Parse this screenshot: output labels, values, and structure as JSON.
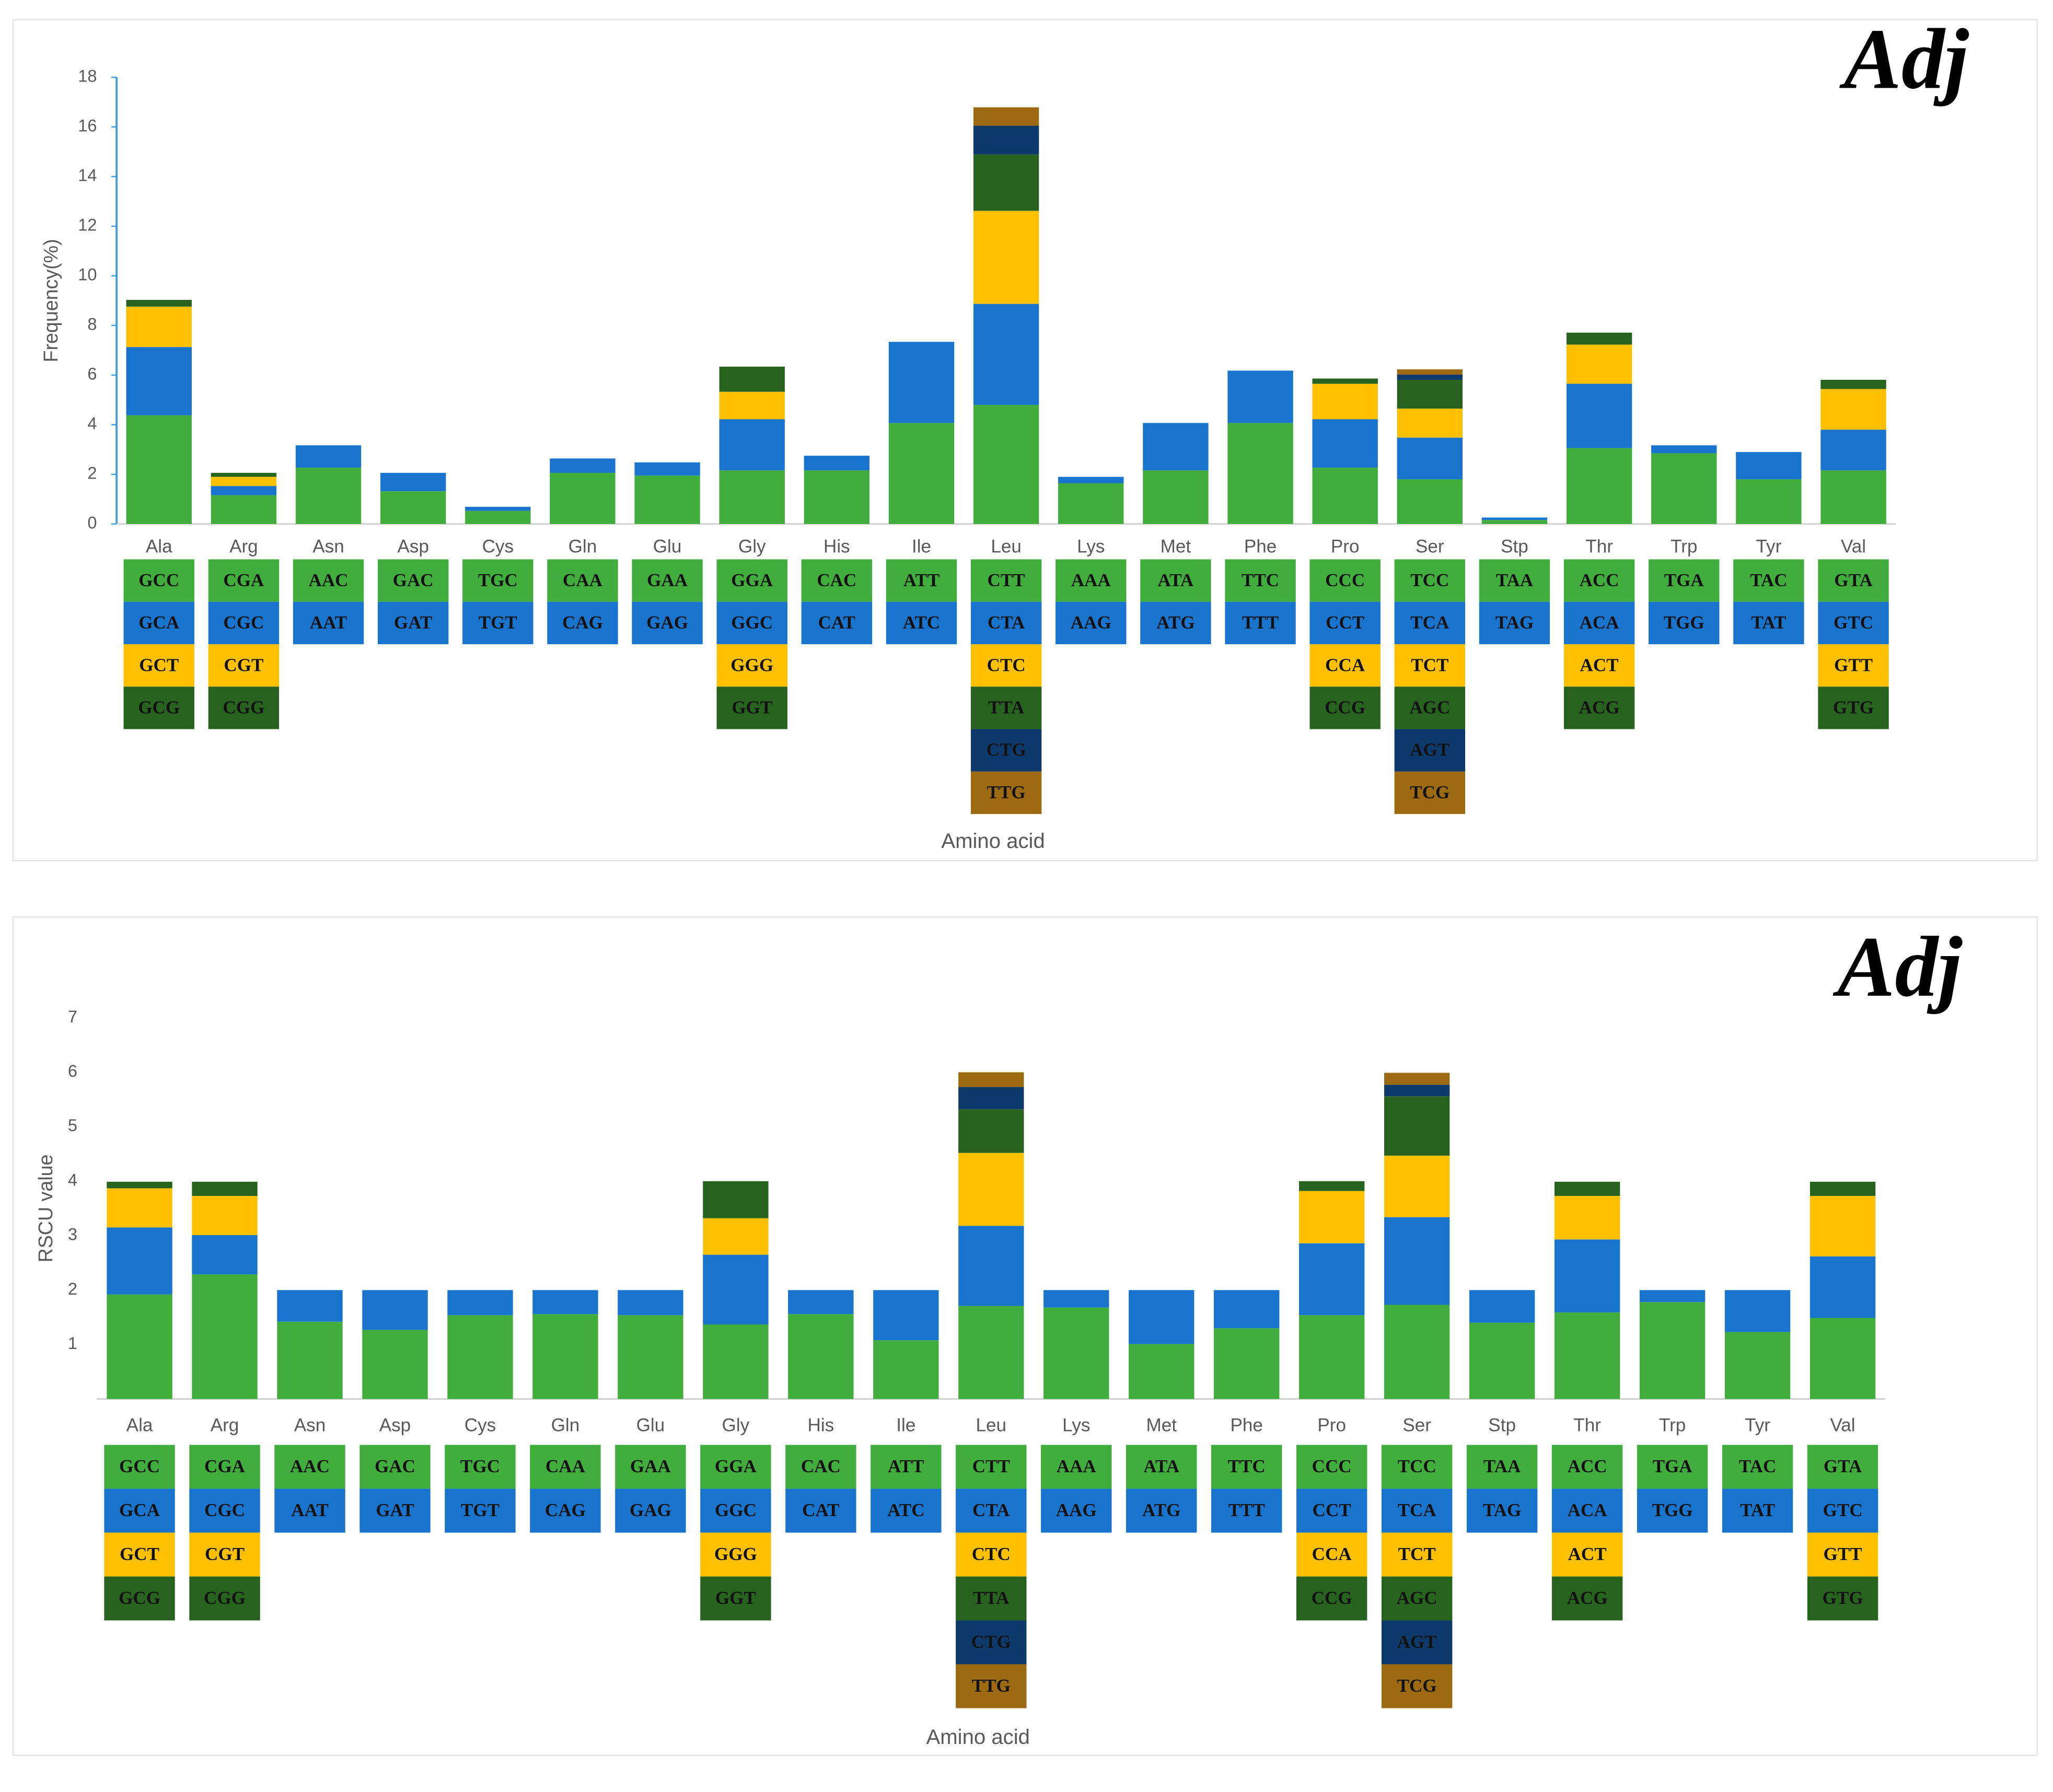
{
  "chart_data": [
    {
      "type": "bar",
      "stacked": true,
      "title": "Adj",
      "ylabel": "Frequency(%)",
      "xlabel": "Amino acid",
      "categories": [
        "Ala",
        "Arg",
        "Asn",
        "Asp",
        "Cys",
        "Gln",
        "Glu",
        "Gly",
        "His",
        "Ile",
        "Leu",
        "Lys",
        "Met",
        "Phe",
        "Pro",
        "Ser",
        "Stp",
        "Thr",
        "Trp",
        "Tyr",
        "Val"
      ],
      "ylim": [
        0,
        18
      ],
      "yticks": [
        0,
        2,
        4,
        6,
        8,
        10,
        12,
        14,
        16,
        18
      ],
      "series": [
        {
          "color": "#41ad3c",
          "values": [
            4.38,
            1.16,
            2.27,
            1.32,
            0.53,
            2.06,
            1.95,
            2.16,
            2.16,
            4.07,
            4.8,
            1.64,
            2.16,
            4.07,
            2.27,
            1.8,
            0.16,
            3.06,
            2.85,
            1.8,
            2.16
          ]
        },
        {
          "color": "#1874cd",
          "values": [
            2.75,
            0.37,
            0.9,
            0.74,
            0.16,
            0.58,
            0.53,
            2.06,
            0.59,
            3.27,
            4.07,
            0.26,
            1.91,
            2.11,
            1.95,
            1.68,
            0.1,
            2.59,
            0.32,
            1.1,
            1.64
          ]
        },
        {
          "color": "#ffc000",
          "values": [
            1.63,
            0.37,
            null,
            null,
            null,
            null,
            null,
            1.11,
            null,
            null,
            3.75,
            null,
            null,
            null,
            1.43,
            1.17,
            null,
            1.58,
            null,
            null,
            1.64
          ]
        },
        {
          "color": "#27631f",
          "values": [
            0.27,
            0.16,
            null,
            null,
            null,
            null,
            null,
            1.01,
            null,
            null,
            2.27,
            null,
            null,
            null,
            0.21,
            1.16,
            null,
            0.48,
            null,
            null,
            0.37
          ]
        },
        {
          "color": "#0d3a6b",
          "values": [
            null,
            null,
            null,
            null,
            null,
            null,
            null,
            null,
            null,
            null,
            1.16,
            null,
            null,
            null,
            null,
            0.21,
            null,
            null,
            null,
            null,
            null
          ]
        },
        {
          "color": "#9c6a10",
          "values": [
            null,
            null,
            null,
            null,
            null,
            null,
            null,
            null,
            null,
            null,
            0.74,
            null,
            null,
            null,
            null,
            0.21,
            null,
            null,
            null,
            null,
            null
          ]
        }
      ],
      "codons": [
        [
          "GCC",
          "GCA",
          "GCT",
          "GCG"
        ],
        [
          "CGA",
          "CGC",
          "CGT",
          "CGG"
        ],
        [
          "AAC",
          "AAT"
        ],
        [
          "GAC",
          "GAT"
        ],
        [
          "TGC",
          "TGT"
        ],
        [
          "CAA",
          "CAG"
        ],
        [
          "GAA",
          "GAG"
        ],
        [
          "GGA",
          "GGC",
          "GGG",
          "GGT"
        ],
        [
          "CAC",
          "CAT"
        ],
        [
          "ATT",
          "ATC"
        ],
        [
          "CTT",
          "CTA",
          "CTC",
          "TTA",
          "CTG",
          "TTG"
        ],
        [
          "AAA",
          "AAG"
        ],
        [
          "ATA",
          "ATG"
        ],
        [
          "TTC",
          "TTT"
        ],
        [
          "CCC",
          "CCT",
          "CCA",
          "CCG"
        ],
        [
          "TCC",
          "TCA",
          "TCT",
          "AGC",
          "AGT",
          "TCG"
        ],
        [
          "TAA",
          "TAG"
        ],
        [
          "ACC",
          "ACA",
          "ACT",
          "ACG"
        ],
        [
          "TGA",
          "TGG"
        ],
        [
          "TAC",
          "TAT"
        ],
        [
          "GTA",
          "GTC",
          "GTT",
          "GTG"
        ]
      ]
    },
    {
      "type": "bar",
      "stacked": true,
      "title": "Adj",
      "ylabel": "RSCU value",
      "xlabel": "Amino acid",
      "categories": [
        "Ala",
        "Arg",
        "Asn",
        "Asp",
        "Cys",
        "Gln",
        "Glu",
        "Gly",
        "His",
        "Ile",
        "Leu",
        "Lys",
        "Met",
        "Phe",
        "Pro",
        "Ser",
        "Stp",
        "Thr",
        "Trp",
        "Tyr",
        "Val"
      ],
      "ylim": [
        0,
        7
      ],
      "yticks": [
        1,
        2,
        3,
        4,
        5,
        6,
        7
      ],
      "series": [
        {
          "color": "#41ad3c",
          "values": [
            1.92,
            2.29,
            1.42,
            1.27,
            1.54,
            1.56,
            1.54,
            1.37,
            1.56,
            1.08,
            1.71,
            1.68,
            1.01,
            1.3,
            1.54,
            1.73,
            1.4,
            1.59,
            1.78,
            1.23,
            1.49
          ]
        },
        {
          "color": "#1874cd",
          "values": [
            1.23,
            0.72,
            0.58,
            0.73,
            0.46,
            0.44,
            0.46,
            1.28,
            0.44,
            0.92,
            1.47,
            0.32,
            0.99,
            0.7,
            1.32,
            1.61,
            0.6,
            1.34,
            0.22,
            0.77,
            1.13
          ]
        },
        {
          "color": "#ffc000",
          "values": [
            0.72,
            0.72,
            null,
            null,
            null,
            null,
            null,
            0.67,
            null,
            null,
            1.34,
            null,
            null,
            null,
            0.96,
            1.13,
            null,
            0.8,
            null,
            null,
            1.11
          ]
        },
        {
          "color": "#27631f",
          "values": [
            0.12,
            0.26,
            null,
            null,
            null,
            null,
            null,
            0.68,
            null,
            null,
            0.8,
            null,
            null,
            null,
            0.18,
            1.09,
            null,
            0.26,
            null,
            null,
            0.26
          ]
        },
        {
          "color": "#0d3a6b",
          "values": [
            null,
            null,
            null,
            null,
            null,
            null,
            null,
            null,
            null,
            null,
            0.41,
            null,
            null,
            null,
            null,
            0.21,
            null,
            null,
            null,
            null,
            null
          ]
        },
        {
          "color": "#9c6a10",
          "values": [
            null,
            null,
            null,
            null,
            null,
            null,
            null,
            null,
            null,
            null,
            0.27,
            null,
            null,
            null,
            null,
            0.22,
            null,
            null,
            null,
            null,
            null
          ]
        }
      ],
      "codons": [
        [
          "GCC",
          "GCA",
          "GCT",
          "GCG"
        ],
        [
          "CGA",
          "CGC",
          "CGT",
          "CGG"
        ],
        [
          "AAC",
          "AAT"
        ],
        [
          "GAC",
          "GAT"
        ],
        [
          "TGC",
          "TGT"
        ],
        [
          "CAA",
          "CAG"
        ],
        [
          "GAA",
          "GAG"
        ],
        [
          "GGA",
          "GGC",
          "GGG",
          "GGT"
        ],
        [
          "CAC",
          "CAT"
        ],
        [
          "ATT",
          "ATC"
        ],
        [
          "CTT",
          "CTA",
          "CTC",
          "TTA",
          "CTG",
          "TTG"
        ],
        [
          "AAA",
          "AAG"
        ],
        [
          "ATA",
          "ATG"
        ],
        [
          "TTC",
          "TTT"
        ],
        [
          "CCC",
          "CCT",
          "CCA",
          "CCG"
        ],
        [
          "TCC",
          "TCA",
          "TCT",
          "AGC",
          "AGT",
          "TCG"
        ],
        [
          "TAA",
          "TAG"
        ],
        [
          "ACC",
          "ACA",
          "ACT",
          "ACG"
        ],
        [
          "TGA",
          "TGG"
        ],
        [
          "TAC",
          "TAT"
        ],
        [
          "GTA",
          "GTC",
          "GTT",
          "GTG"
        ]
      ]
    }
  ]
}
